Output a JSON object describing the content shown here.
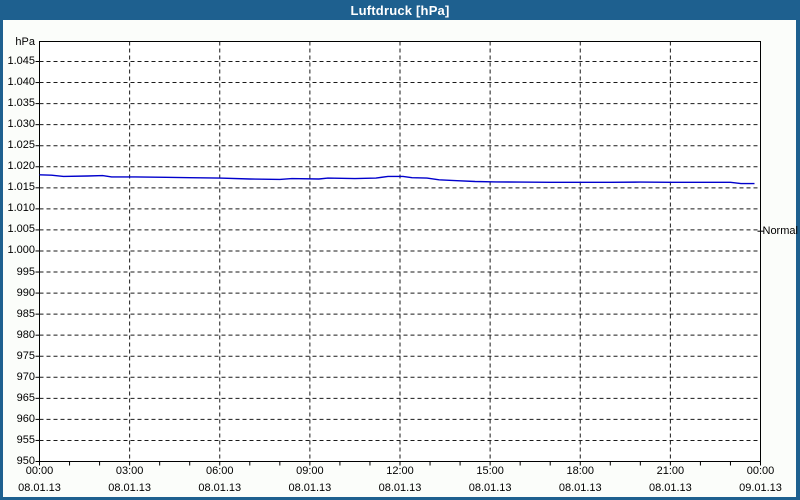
{
  "window": {
    "title": "Luftdruck [hPa]"
  },
  "colors": {
    "titlebar": "#1e608f",
    "window_border": "#1e608f",
    "window_bg": "#fbfdfa",
    "plot_bg": "#ffffff",
    "plot_border": "#000000",
    "grid": "#1a1a1a",
    "line": "#0000cc",
    "text": "#000000"
  },
  "chart_data": {
    "type": "line",
    "title": "Luftdruck [hPa]",
    "ylabel": "hPa",
    "xlabel": "",
    "ylim": [
      950,
      1045
    ],
    "xlim_hours": [
      0,
      24
    ],
    "grid": "dashed",
    "legend_position": "none",
    "y_tick_labels": [
      "1.045",
      "1.040",
      "1.035",
      "1.030",
      "1.025",
      "1.020",
      "1.015",
      "1.010",
      "1.005",
      "1.000",
      "995",
      "990",
      "985",
      "980",
      "975",
      "970",
      "965",
      "960",
      "955",
      "950"
    ],
    "y_tick_values": [
      1045,
      1040,
      1035,
      1030,
      1025,
      1020,
      1015,
      1010,
      1005,
      1000,
      995,
      990,
      985,
      980,
      975,
      970,
      965,
      960,
      955,
      950
    ],
    "x_ticks": [
      {
        "hour": 0,
        "time": "00:00",
        "date": "08.01.13"
      },
      {
        "hour": 3,
        "time": "03:00",
        "date": "08.01.13"
      },
      {
        "hour": 6,
        "time": "06:00",
        "date": "08.01.13"
      },
      {
        "hour": 9,
        "time": "09:00",
        "date": "08.01.13"
      },
      {
        "hour": 12,
        "time": "12:00",
        "date": "08.01.13"
      },
      {
        "hour": 15,
        "time": "15:00",
        "date": "08.01.13"
      },
      {
        "hour": 18,
        "time": "18:00",
        "date": "08.01.13"
      },
      {
        "hour": 21,
        "time": "21:00",
        "date": "08.01.13"
      },
      {
        "hour": 24,
        "time": "00:00",
        "date": "09.01.13"
      }
    ],
    "x_minor_tick_hours": [
      0,
      1,
      2,
      3,
      4,
      5,
      6,
      7,
      8,
      9,
      10,
      11,
      12,
      13,
      14,
      15,
      16,
      17,
      18,
      19,
      20,
      21,
      22,
      23,
      24
    ],
    "normal_marker": {
      "label": "Normal",
      "value_hpa": 1004.7
    },
    "series": [
      {
        "name": "Luftdruck",
        "color": "#0000cc",
        "x_hours": [
          0,
          0.4,
          0.8,
          1.6,
          2.1,
          2.4,
          3.2,
          4.2,
          5,
          6,
          7,
          8,
          8.4,
          9.3,
          9.6,
          10.5,
          11.2,
          11.6,
          12.1,
          12.4,
          12.9,
          13.3,
          13.9,
          14.5,
          15.2,
          16,
          17,
          18,
          19,
          20,
          21,
          22,
          23,
          23.35,
          23.8
        ],
        "values_hpa": [
          1018.1,
          1018.0,
          1017.7,
          1017.8,
          1017.9,
          1017.6,
          1017.6,
          1017.5,
          1017.4,
          1017.3,
          1017.1,
          1017.0,
          1017.2,
          1017.1,
          1017.3,
          1017.2,
          1017.3,
          1017.7,
          1017.7,
          1017.4,
          1017.3,
          1016.9,
          1016.7,
          1016.5,
          1016.4,
          1016.35,
          1016.3,
          1016.3,
          1016.3,
          1016.35,
          1016.3,
          1016.3,
          1016.3,
          1016.0,
          1016.0
        ]
      }
    ]
  }
}
